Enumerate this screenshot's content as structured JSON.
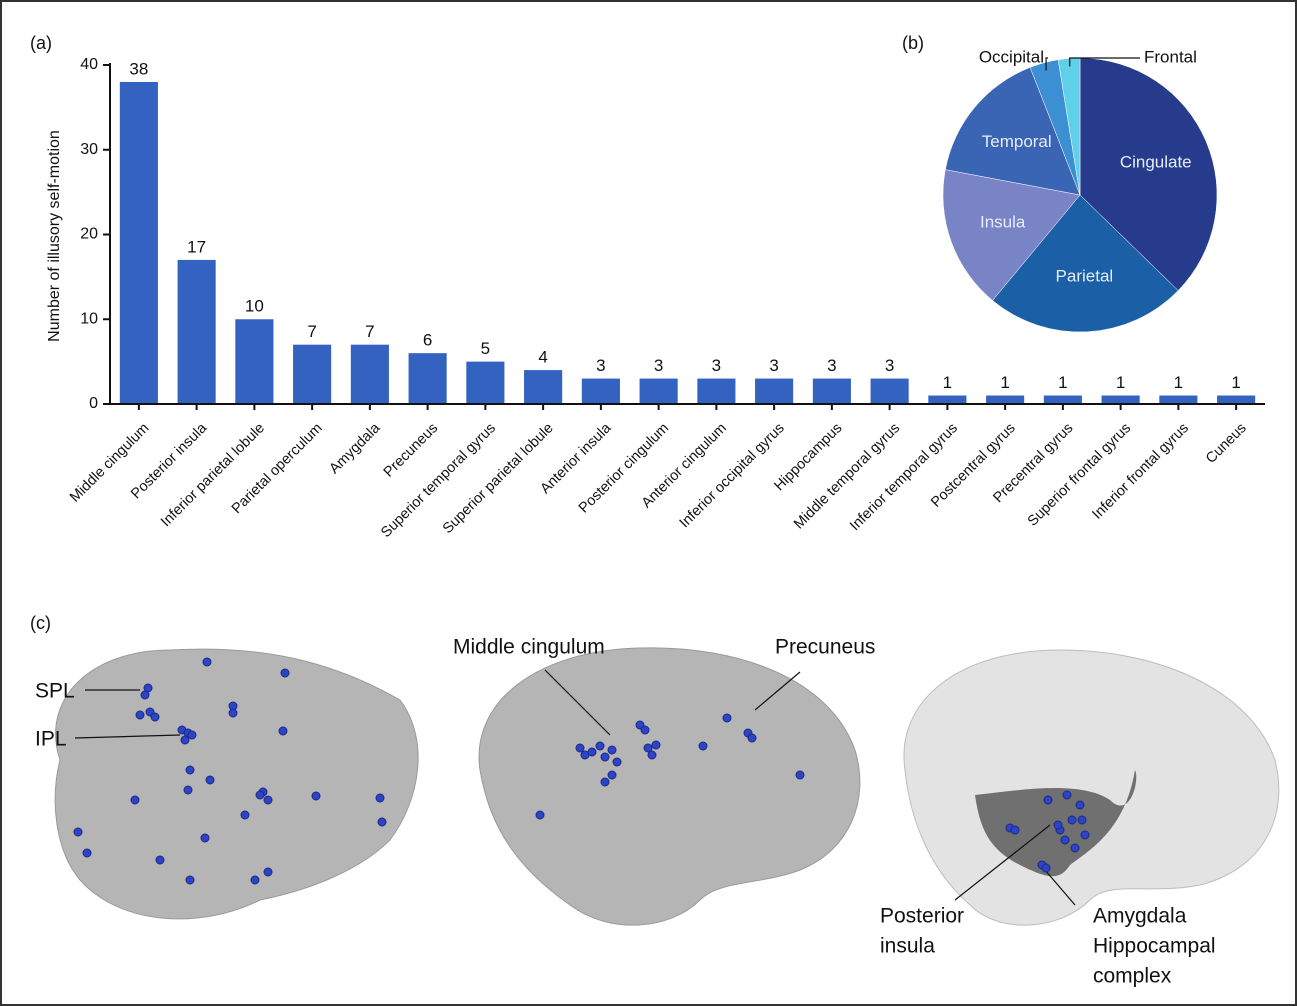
{
  "chart_data": [
    {
      "type": "bar",
      "panel_label": "(a)",
      "y_label": "Number of illusory self-motion",
      "categories": [
        "Middle cingulum",
        "Posterior insula",
        "Inferior parietal lobule",
        "Parietal operculum",
        "Amygdala",
        "Precuneus",
        "Superior temporal gyrus",
        "Superior parietal lobule",
        "Anterior insula",
        "Posterior cingulum",
        "Anterior cingulum",
        "Inferior occipital gyrus",
        "Hippocampus",
        "Middle temporal gyrus",
        "Inferior temporal gyrus",
        "Postcentral gyrus",
        "Precentral gyrus",
        "Superior frontal gyrus",
        "Inferior frontal gyrus",
        "Cuneus"
      ],
      "values": [
        38,
        17,
        10,
        7,
        7,
        6,
        5,
        4,
        3,
        3,
        3,
        3,
        3,
        3,
        1,
        1,
        1,
        1,
        1,
        1
      ],
      "color": "#3462c0",
      "ylim": [
        0,
        40
      ],
      "yticks": [
        0,
        10,
        20,
        30,
        40
      ],
      "grid": false
    },
    {
      "type": "pie",
      "panel_label": "(b)",
      "categories": [
        "Cingulate",
        "Parietal",
        "Insula",
        "Temporal",
        "Occipital",
        "Frontal"
      ],
      "values": [
        44,
        28,
        20,
        19,
        4,
        3
      ],
      "colors": [
        "#263b8c",
        "#1b5fa6",
        "#7884c6",
        "#3a64b4",
        "#3b8fd2",
        "#5fd0e8"
      ]
    }
  ],
  "brain_panel": {
    "panel_label": "(c)",
    "annotations": [
      {
        "lines": [
          "SPL"
        ]
      },
      {
        "lines": [
          "IPL"
        ]
      },
      {
        "lines": [
          "Middle cingulum"
        ]
      },
      {
        "lines": [
          "Precuneus"
        ]
      },
      {
        "lines": [
          "Posterior",
          "insula"
        ]
      },
      {
        "lines": [
          "Amygdala",
          "Hippocampal",
          "complex"
        ]
      }
    ]
  }
}
